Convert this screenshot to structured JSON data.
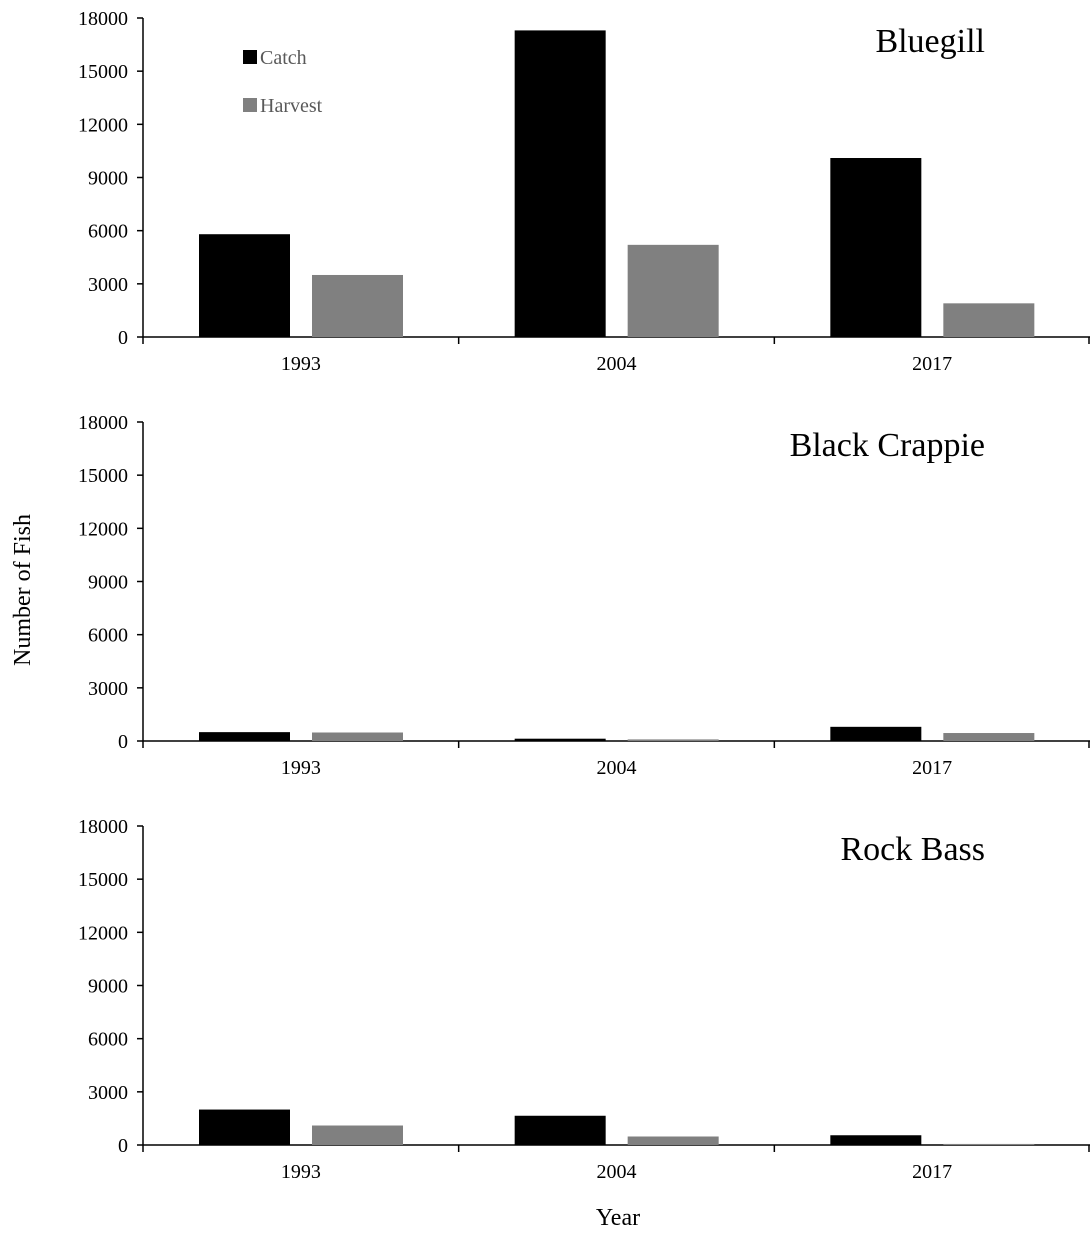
{
  "chart_data": [
    {
      "type": "bar",
      "title": "Bluegill",
      "categories": [
        "1993",
        "2004",
        "2017"
      ],
      "series": [
        {
          "name": "Catch",
          "values": [
            5800,
            17300,
            10100
          ]
        },
        {
          "name": "Harvest",
          "values": [
            3500,
            5200,
            1900
          ]
        }
      ],
      "ylim": [
        0,
        18000
      ],
      "yticks": [
        "0",
        "3000",
        "6000",
        "9000",
        "12000",
        "15000",
        "18000"
      ],
      "legend": "top-left",
      "grid": false
    },
    {
      "type": "bar",
      "title": "Black Crappie",
      "categories": [
        "1993",
        "2004",
        "2017"
      ],
      "series": [
        {
          "name": "Catch",
          "values": [
            500,
            130,
            800
          ]
        },
        {
          "name": "Harvest",
          "values": [
            480,
            90,
            450
          ]
        }
      ],
      "ylim": [
        0,
        18000
      ],
      "yticks": [
        "0",
        "3000",
        "6000",
        "9000",
        "12000",
        "15000",
        "18000"
      ],
      "grid": false
    },
    {
      "type": "bar",
      "title": "Rock Bass",
      "categories": [
        "1993",
        "2004",
        "2017"
      ],
      "series": [
        {
          "name": "Catch",
          "values": [
            2000,
            1650,
            550
          ]
        },
        {
          "name": "Harvest",
          "values": [
            1100,
            480,
            60
          ]
        }
      ],
      "ylim": [
        0,
        18000
      ],
      "yticks": [
        "0",
        "3000",
        "6000",
        "9000",
        "12000",
        "15000",
        "18000"
      ],
      "grid": false
    }
  ],
  "ylabel": "Number of Fish",
  "xlabel": "Year",
  "colors": {
    "Catch": "#000000",
    "Harvest": "#808080",
    "axis": "#000000"
  }
}
